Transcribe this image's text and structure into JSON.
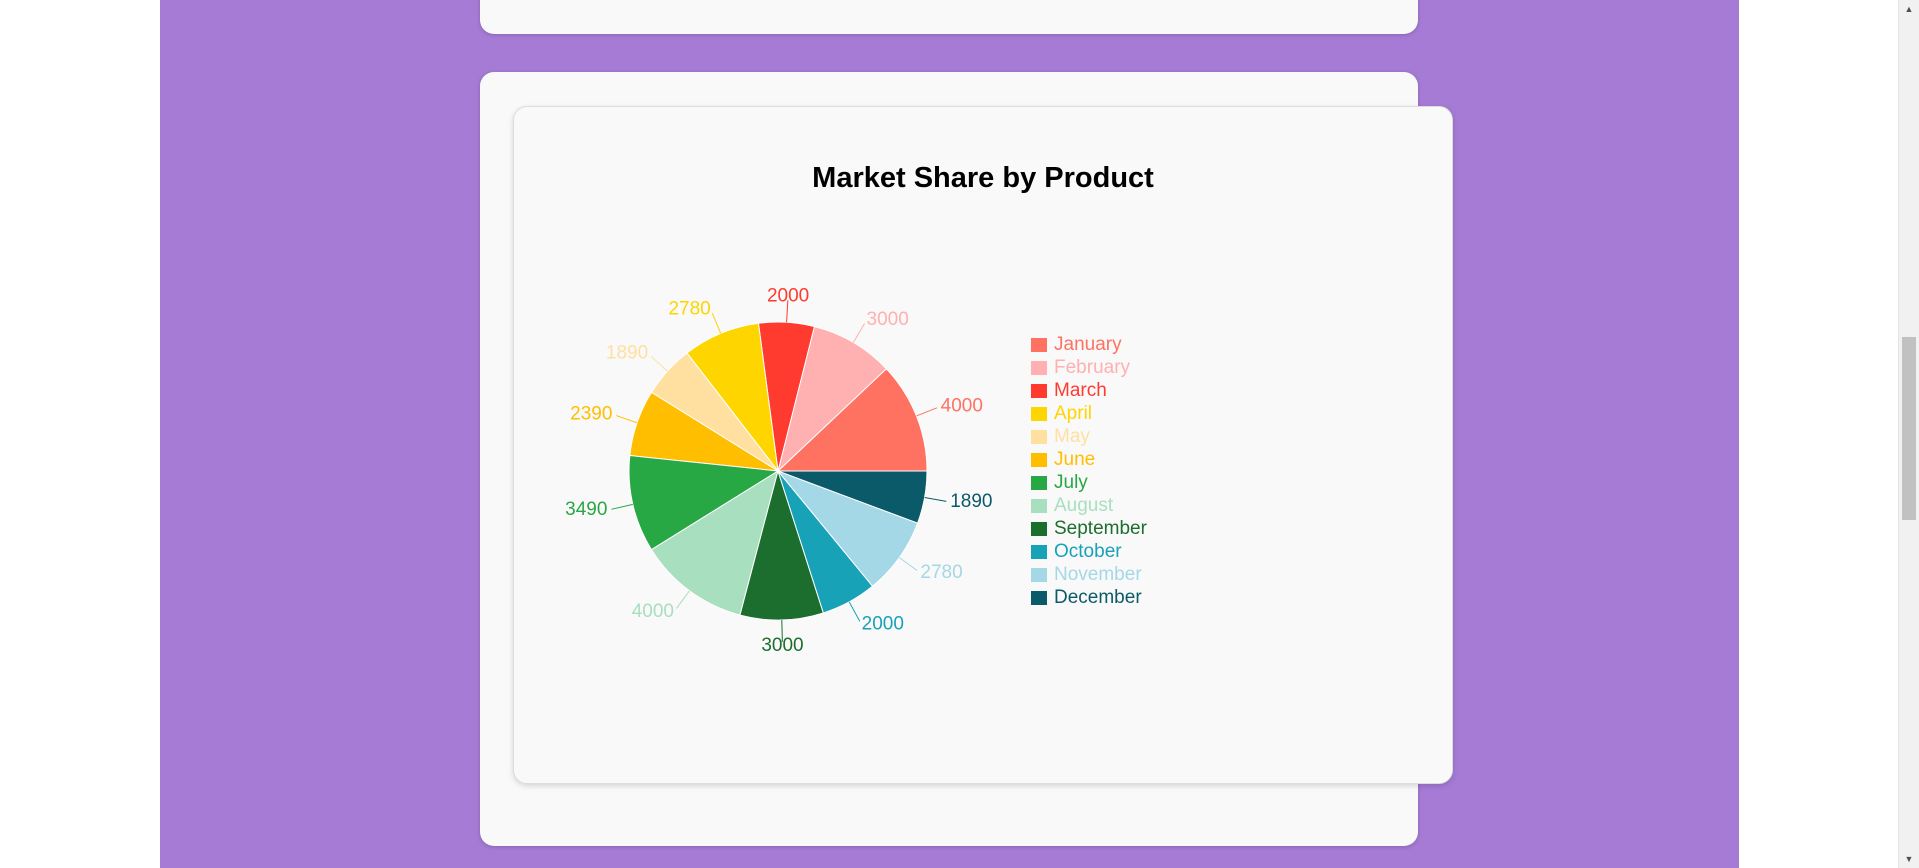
{
  "chart_data": {
    "type": "pie",
    "title": "Market Share by Product",
    "categories": [
      "January",
      "February",
      "March",
      "April",
      "May",
      "June",
      "July",
      "August",
      "September",
      "October",
      "November",
      "December"
    ],
    "values": [
      4000,
      3000,
      2000,
      2780,
      1890,
      2390,
      3490,
      4000,
      3000,
      2000,
      2780,
      1890
    ],
    "colors": [
      "#ff7262",
      "#ffb0b0",
      "#ff3b30",
      "#ffd500",
      "#ffe0a0",
      "#ffbf00",
      "#28a745",
      "#a8dfbf",
      "#1c6e2e",
      "#17a2b8",
      "#a4d8e6",
      "#0b5a6a"
    ],
    "legend_position": "right"
  },
  "scrollbar": {
    "up_arrow": "▲",
    "down_arrow": "▼"
  }
}
